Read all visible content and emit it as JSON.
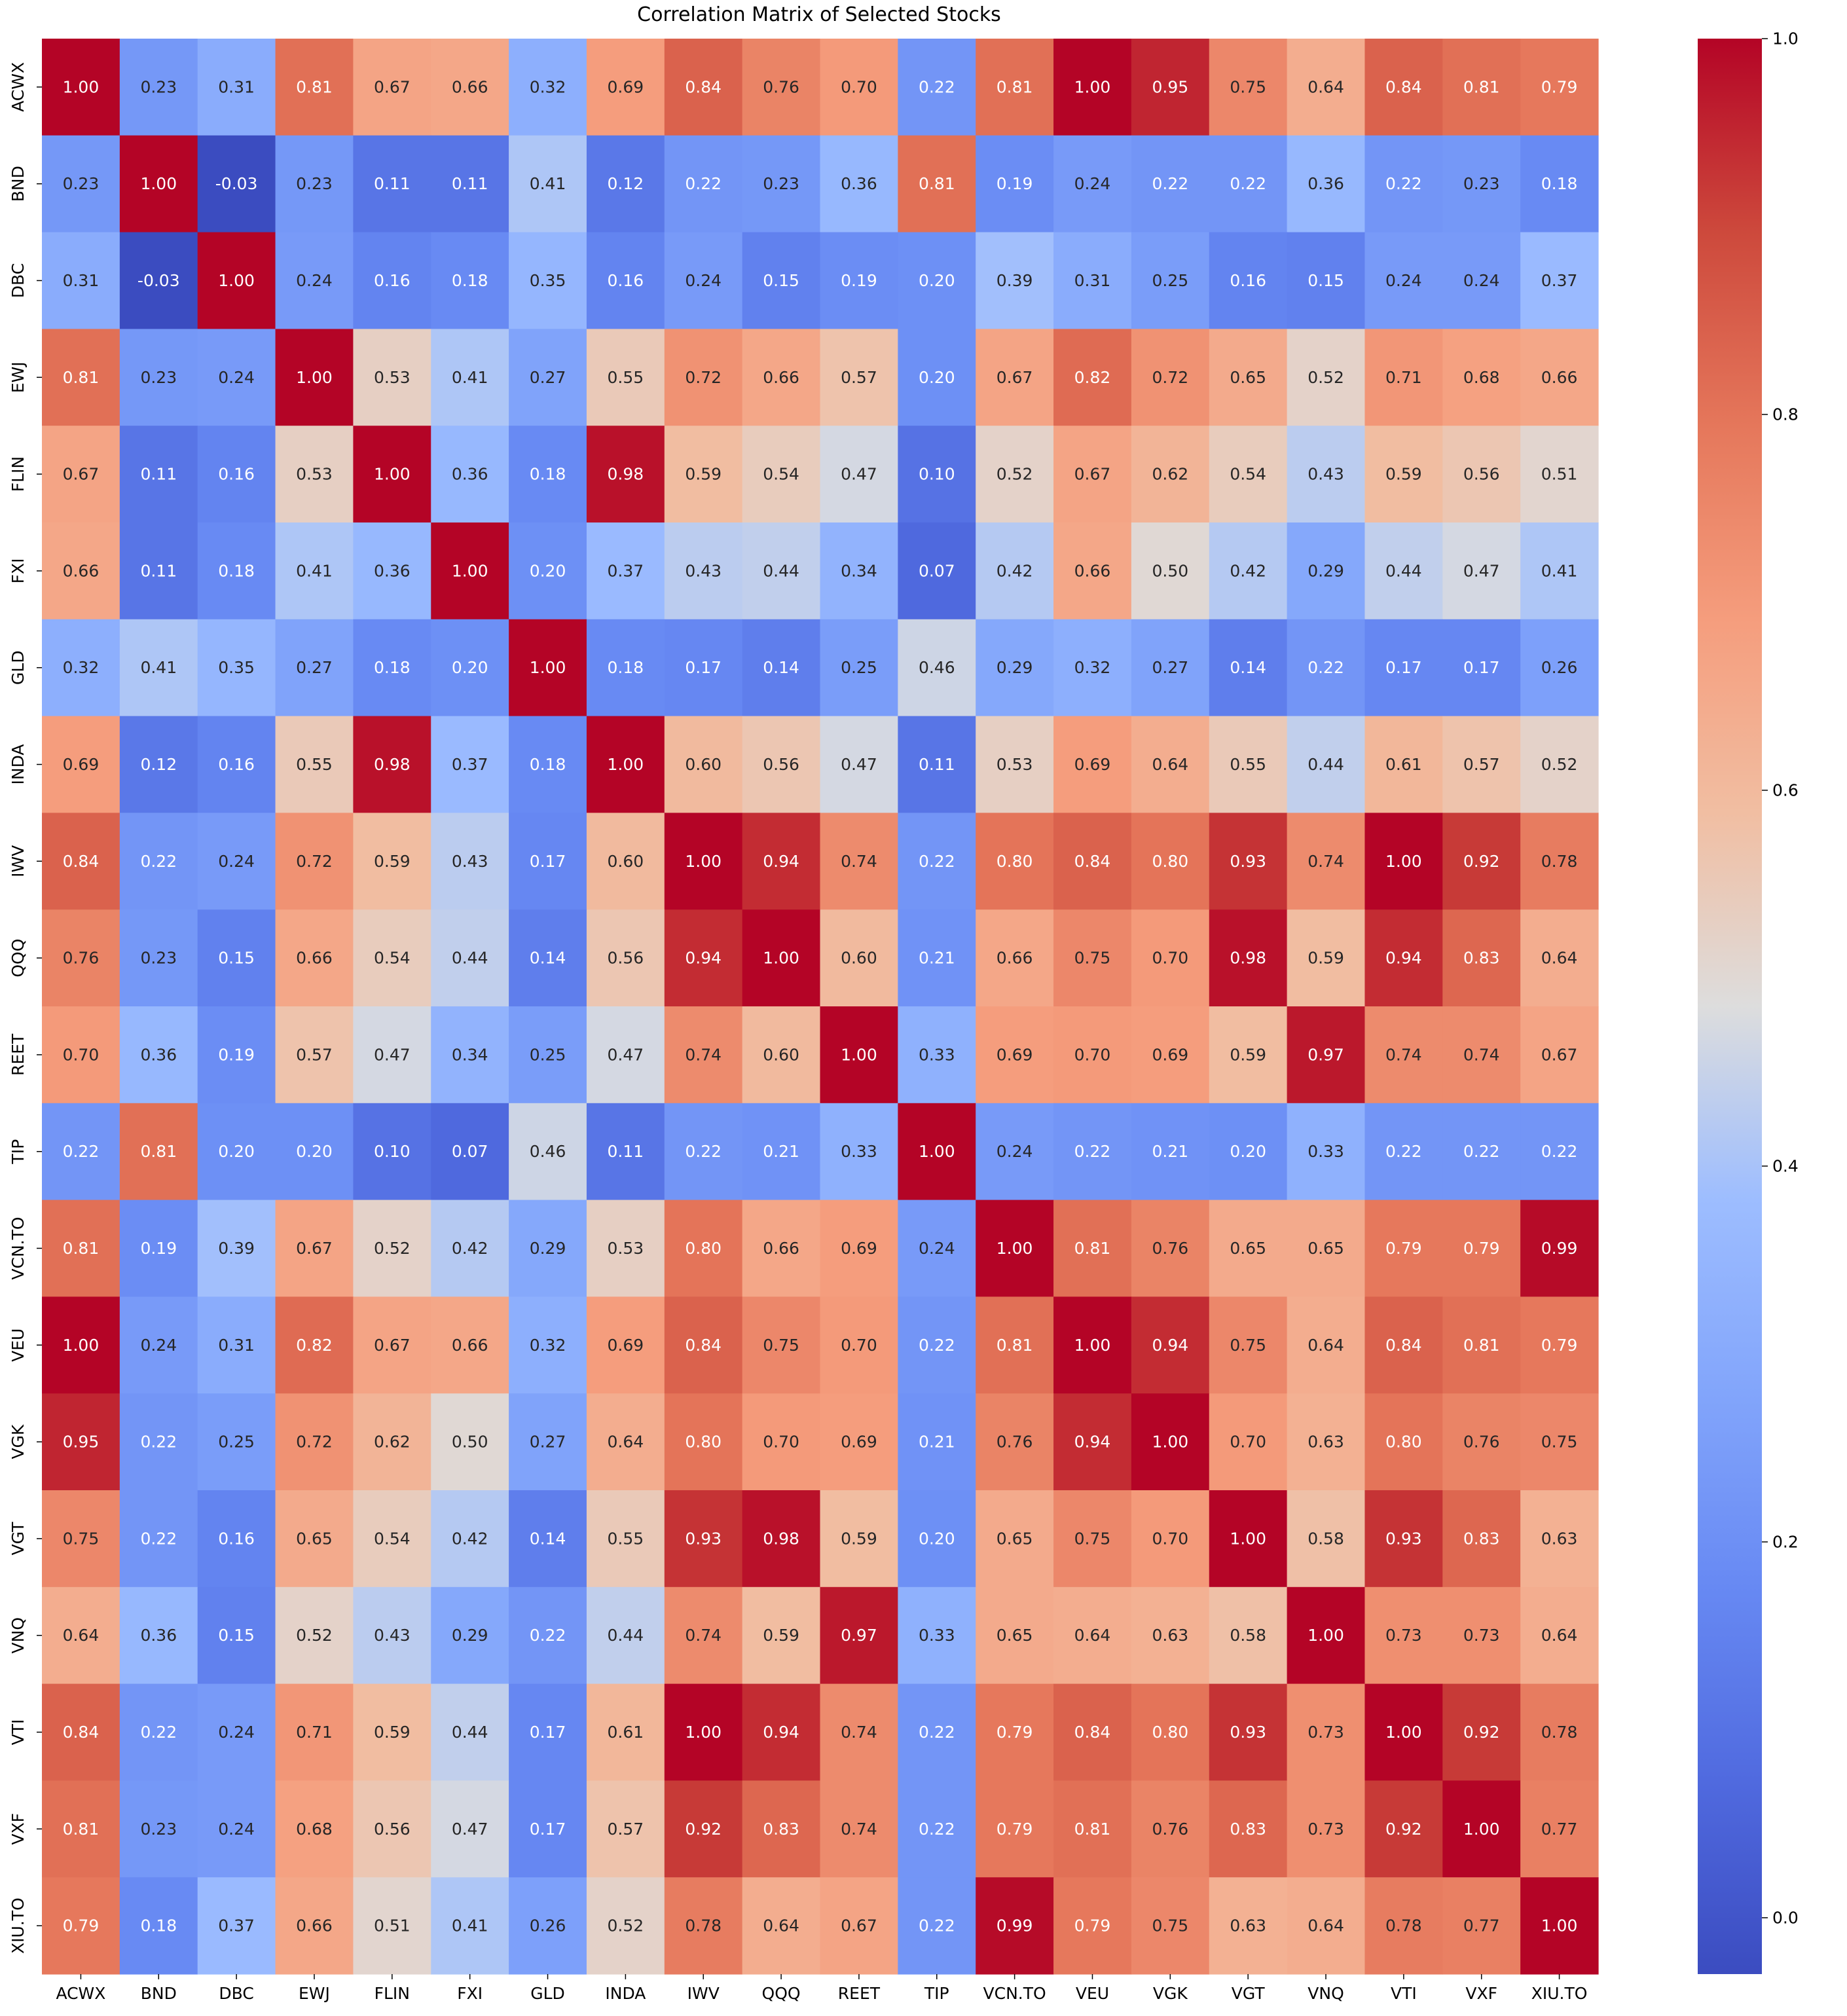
{
  "chart_data": {
    "type": "heatmap",
    "title": "Correlation Matrix of Selected Stocks",
    "labels": [
      "ACWX",
      "BND",
      "DBC",
      "EWJ",
      "FLIN",
      "FXI",
      "GLD",
      "INDA",
      "IWV",
      "QQQ",
      "REET",
      "TIP",
      "VCN.TO",
      "VEU",
      "VGK",
      "VGT",
      "VNQ",
      "VTI",
      "VXF",
      "XIU.TO"
    ],
    "matrix": [
      [
        1.0,
        0.23,
        0.31,
        0.81,
        0.67,
        0.66,
        0.32,
        0.69,
        0.84,
        0.76,
        0.7,
        0.22,
        0.81,
        1.0,
        0.95,
        0.75,
        0.64,
        0.84,
        0.81,
        0.79
      ],
      [
        0.23,
        1.0,
        -0.03,
        0.23,
        0.11,
        0.11,
        0.41,
        0.12,
        0.22,
        0.23,
        0.36,
        0.81,
        0.19,
        0.24,
        0.22,
        0.22,
        0.36,
        0.22,
        0.23,
        0.18
      ],
      [
        0.31,
        -0.03,
        1.0,
        0.24,
        0.16,
        0.18,
        0.35,
        0.16,
        0.24,
        0.15,
        0.19,
        0.2,
        0.39,
        0.31,
        0.25,
        0.16,
        0.15,
        0.24,
        0.24,
        0.37
      ],
      [
        0.81,
        0.23,
        0.24,
        1.0,
        0.53,
        0.41,
        0.27,
        0.55,
        0.72,
        0.66,
        0.57,
        0.2,
        0.67,
        0.82,
        0.72,
        0.65,
        0.52,
        0.71,
        0.68,
        0.66
      ],
      [
        0.67,
        0.11,
        0.16,
        0.53,
        1.0,
        0.36,
        0.18,
        0.98,
        0.59,
        0.54,
        0.47,
        0.1,
        0.52,
        0.67,
        0.62,
        0.54,
        0.43,
        0.59,
        0.56,
        0.51
      ],
      [
        0.66,
        0.11,
        0.18,
        0.41,
        0.36,
        1.0,
        0.2,
        0.37,
        0.43,
        0.44,
        0.34,
        0.07,
        0.42,
        0.66,
        0.5,
        0.42,
        0.29,
        0.44,
        0.47,
        0.41
      ],
      [
        0.32,
        0.41,
        0.35,
        0.27,
        0.18,
        0.2,
        1.0,
        0.18,
        0.17,
        0.14,
        0.25,
        0.46,
        0.29,
        0.32,
        0.27,
        0.14,
        0.22,
        0.17,
        0.17,
        0.26
      ],
      [
        0.69,
        0.12,
        0.16,
        0.55,
        0.98,
        0.37,
        0.18,
        1.0,
        0.6,
        0.56,
        0.47,
        0.11,
        0.53,
        0.69,
        0.64,
        0.55,
        0.44,
        0.61,
        0.57,
        0.52
      ],
      [
        0.84,
        0.22,
        0.24,
        0.72,
        0.59,
        0.43,
        0.17,
        0.6,
        1.0,
        0.94,
        0.74,
        0.22,
        0.8,
        0.84,
        0.8,
        0.93,
        0.74,
        1.0,
        0.92,
        0.78
      ],
      [
        0.76,
        0.23,
        0.15,
        0.66,
        0.54,
        0.44,
        0.14,
        0.56,
        0.94,
        1.0,
        0.6,
        0.21,
        0.66,
        0.75,
        0.7,
        0.98,
        0.59,
        0.94,
        0.83,
        0.64
      ],
      [
        0.7,
        0.36,
        0.19,
        0.57,
        0.47,
        0.34,
        0.25,
        0.47,
        0.74,
        0.6,
        1.0,
        0.33,
        0.69,
        0.7,
        0.69,
        0.59,
        0.97,
        0.74,
        0.74,
        0.67
      ],
      [
        0.22,
        0.81,
        0.2,
        0.2,
        0.1,
        0.07,
        0.46,
        0.11,
        0.22,
        0.21,
        0.33,
        1.0,
        0.24,
        0.22,
        0.21,
        0.2,
        0.33,
        0.22,
        0.22,
        0.22
      ],
      [
        0.81,
        0.19,
        0.39,
        0.67,
        0.52,
        0.42,
        0.29,
        0.53,
        0.8,
        0.66,
        0.69,
        0.24,
        1.0,
        0.81,
        0.76,
        0.65,
        0.65,
        0.79,
        0.79,
        0.99
      ],
      [
        1.0,
        0.24,
        0.31,
        0.82,
        0.67,
        0.66,
        0.32,
        0.69,
        0.84,
        0.75,
        0.7,
        0.22,
        0.81,
        1.0,
        0.94,
        0.75,
        0.64,
        0.84,
        0.81,
        0.79
      ],
      [
        0.95,
        0.22,
        0.25,
        0.72,
        0.62,
        0.5,
        0.27,
        0.64,
        0.8,
        0.7,
        0.69,
        0.21,
        0.76,
        0.94,
        1.0,
        0.7,
        0.63,
        0.8,
        0.76,
        0.75
      ],
      [
        0.75,
        0.22,
        0.16,
        0.65,
        0.54,
        0.42,
        0.14,
        0.55,
        0.93,
        0.98,
        0.59,
        0.2,
        0.65,
        0.75,
        0.7,
        1.0,
        0.58,
        0.93,
        0.83,
        0.63
      ],
      [
        0.64,
        0.36,
        0.15,
        0.52,
        0.43,
        0.29,
        0.22,
        0.44,
        0.74,
        0.59,
        0.97,
        0.33,
        0.65,
        0.64,
        0.63,
        0.58,
        1.0,
        0.73,
        0.73,
        0.64
      ],
      [
        0.84,
        0.22,
        0.24,
        0.71,
        0.59,
        0.44,
        0.17,
        0.61,
        1.0,
        0.94,
        0.74,
        0.22,
        0.79,
        0.84,
        0.8,
        0.93,
        0.73,
        1.0,
        0.92,
        0.78
      ],
      [
        0.81,
        0.23,
        0.24,
        0.68,
        0.56,
        0.47,
        0.17,
        0.57,
        0.92,
        0.83,
        0.74,
        0.22,
        0.79,
        0.81,
        0.76,
        0.83,
        0.73,
        0.92,
        1.0,
        0.77
      ],
      [
        0.79,
        0.18,
        0.37,
        0.66,
        0.51,
        0.41,
        0.26,
        0.52,
        0.78,
        0.64,
        0.67,
        0.22,
        0.99,
        0.79,
        0.75,
        0.63,
        0.64,
        0.78,
        0.77,
        1.0
      ]
    ],
    "colorbar": {
      "colormap": "coolwarm",
      "min": -0.03,
      "max": 1.0,
      "ticks": [
        0.0,
        0.2,
        0.4,
        0.6,
        0.8,
        1.0
      ],
      "tick_labels": [
        "0.0",
        "0.2",
        "0.4",
        "0.6",
        "0.8",
        "1.0"
      ]
    },
    "annotation_format": "2 decimals"
  }
}
